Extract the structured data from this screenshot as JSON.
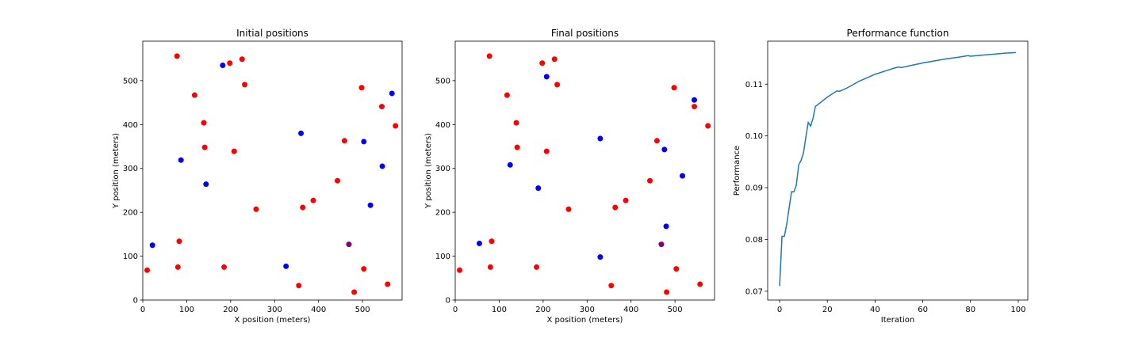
{
  "colors": {
    "node_red": "#ff0000",
    "node_blue": "#0000ff",
    "node_purple": "#800080",
    "line": "#1f77b4"
  },
  "chart_data": [
    {
      "type": "scatter",
      "title": "Initial positions",
      "xlabel": "X position (meters)",
      "ylabel": "Y position (meters)",
      "xlim": [
        0,
        590
      ],
      "ylim": [
        0,
        590
      ],
      "xticks": [
        0,
        100,
        200,
        300,
        400,
        500
      ],
      "yticks": [
        0,
        100,
        200,
        300,
        400,
        500
      ],
      "grid": false,
      "series": [
        {
          "color": "#ff0000",
          "points": [
            [
              78,
              556
            ],
            [
              198,
              540
            ],
            [
              226,
              549
            ],
            [
              232,
              491
            ],
            [
              118,
              467
            ],
            [
              139,
              404
            ],
            [
              141,
              348
            ],
            [
              208,
              339
            ],
            [
              258,
              207
            ],
            [
              364,
              211
            ],
            [
              388,
              227
            ],
            [
              443,
              272
            ],
            [
              459,
              363
            ],
            [
              498,
              484
            ],
            [
              544,
              441
            ],
            [
              575,
              397
            ],
            [
              83,
              134
            ],
            [
              80,
              75
            ],
            [
              185,
              75
            ],
            [
              355,
              33
            ],
            [
              503,
              71
            ],
            [
              481,
              18
            ],
            [
              557,
              36
            ],
            [
              10,
              68
            ]
          ]
        },
        {
          "color": "#0000ff",
          "points": [
            [
              182,
              535
            ],
            [
              567,
              471
            ],
            [
              360,
              380
            ],
            [
              503,
              361
            ],
            [
              87,
              319
            ],
            [
              545,
              305
            ],
            [
              144,
              264
            ],
            [
              518,
              216
            ],
            [
              22,
              125
            ],
            [
              326,
              77
            ]
          ]
        },
        {
          "color": "#800080",
          "points": [
            [
              469,
              127
            ]
          ]
        }
      ]
    },
    {
      "type": "scatter",
      "title": "Final positions",
      "xlabel": "X position (meters)",
      "ylabel": "Y position (meters)",
      "xlim": [
        0,
        590
      ],
      "ylim": [
        0,
        590
      ],
      "xticks": [
        0,
        100,
        200,
        300,
        400,
        500
      ],
      "yticks": [
        0,
        100,
        200,
        300,
        400,
        500
      ],
      "grid": false,
      "series": [
        {
          "color": "#ff0000",
          "points": [
            [
              78,
              556
            ],
            [
              198,
              540
            ],
            [
              226,
              549
            ],
            [
              232,
              491
            ],
            [
              118,
              467
            ],
            [
              139,
              404
            ],
            [
              141,
              348
            ],
            [
              208,
              339
            ],
            [
              258,
              207
            ],
            [
              364,
              211
            ],
            [
              388,
              227
            ],
            [
              443,
              272
            ],
            [
              459,
              363
            ],
            [
              498,
              484
            ],
            [
              544,
              441
            ],
            [
              575,
              397
            ],
            [
              83,
              134
            ],
            [
              80,
              75
            ],
            [
              185,
              75
            ],
            [
              355,
              33
            ],
            [
              503,
              71
            ],
            [
              481,
              18
            ],
            [
              557,
              36
            ],
            [
              10,
              68
            ]
          ]
        },
        {
          "color": "#0000ff",
          "points": [
            [
              208,
              509
            ],
            [
              544,
              456
            ],
            [
              330,
              368
            ],
            [
              476,
              343
            ],
            [
              125,
              308
            ],
            [
              517,
              283
            ],
            [
              189,
              255
            ],
            [
              480,
              168
            ],
            [
              55,
              129
            ],
            [
              330,
              98
            ]
          ]
        },
        {
          "color": "#800080",
          "points": [
            [
              469,
              127
            ]
          ]
        }
      ]
    },
    {
      "type": "line",
      "title": "Performance function",
      "xlabel": "Iteration",
      "ylabel": "Performance",
      "xlim": [
        -5,
        104
      ],
      "ylim": [
        0.0683,
        0.1183
      ],
      "xticks": [
        0,
        20,
        40,
        60,
        80,
        100
      ],
      "yticks": [
        0.07,
        0.08,
        0.09,
        0.1,
        0.11
      ],
      "ytick_labels": [
        "0.07",
        "0.08",
        "0.09",
        "0.10",
        "0.11"
      ],
      "grid": false,
      "series": [
        {
          "color": "#1f77b4",
          "x": [
            0,
            1,
            2,
            3,
            4,
            5,
            6,
            7,
            8,
            9,
            10,
            11,
            12,
            13,
            14,
            15,
            17,
            20,
            22,
            24,
            25,
            26,
            28,
            30,
            33,
            36,
            40,
            44,
            48,
            50,
            51,
            55,
            60,
            65,
            70,
            75,
            79,
            80,
            85,
            90,
            95,
            99
          ],
          "y": [
            0.071,
            0.0806,
            0.0806,
            0.083,
            0.0861,
            0.0892,
            0.0892,
            0.0905,
            0.0944,
            0.0953,
            0.0967,
            0.0998,
            0.1026,
            0.1019,
            0.1034,
            0.1057,
            0.1064,
            0.1075,
            0.1081,
            0.1087,
            0.1086,
            0.1088,
            0.1092,
            0.1097,
            0.1105,
            0.1111,
            0.1119,
            0.1125,
            0.1131,
            0.1133,
            0.1132,
            0.1136,
            0.1141,
            0.1145,
            0.1149,
            0.1152,
            0.1155,
            0.1154,
            0.1156,
            0.1158,
            0.116,
            0.1161
          ]
        }
      ]
    }
  ]
}
